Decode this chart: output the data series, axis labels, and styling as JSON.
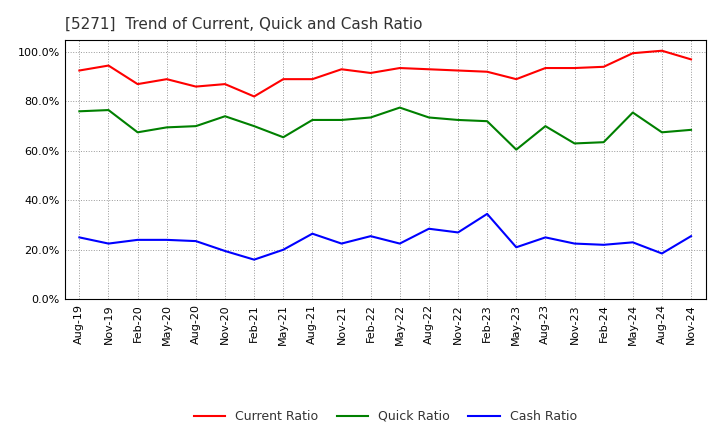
{
  "title": "[5271]  Trend of Current, Quick and Cash Ratio",
  "x_labels": [
    "Aug-19",
    "Nov-19",
    "Feb-20",
    "May-20",
    "Aug-20",
    "Nov-20",
    "Feb-21",
    "May-21",
    "Aug-21",
    "Nov-21",
    "Feb-22",
    "May-22",
    "Aug-22",
    "Nov-22",
    "Feb-23",
    "May-23",
    "Aug-23",
    "Nov-23",
    "Feb-24",
    "May-24",
    "Aug-24",
    "Nov-24"
  ],
  "current_ratio": [
    92.5,
    94.5,
    87.0,
    89.0,
    86.0,
    87.0,
    82.0,
    89.0,
    89.0,
    93.0,
    91.5,
    93.5,
    93.0,
    92.5,
    92.0,
    89.0,
    93.5,
    93.5,
    94.0,
    99.5,
    100.5,
    97.0
  ],
  "quick_ratio": [
    76.0,
    76.5,
    67.5,
    69.5,
    70.0,
    74.0,
    70.0,
    65.5,
    72.5,
    72.5,
    73.5,
    77.5,
    73.5,
    72.5,
    72.0,
    60.5,
    70.0,
    63.0,
    63.5,
    75.5,
    67.5,
    68.5
  ],
  "cash_ratio": [
    25.0,
    22.5,
    24.0,
    24.0,
    23.5,
    19.5,
    16.0,
    20.0,
    26.5,
    22.5,
    25.5,
    22.5,
    28.5,
    27.0,
    34.5,
    21.0,
    25.0,
    22.5,
    22.0,
    23.0,
    18.5,
    25.5
  ],
  "current_color": "#FF0000",
  "quick_color": "#008000",
  "cash_color": "#0000FF",
  "ylim": [
    0,
    105
  ],
  "yticks": [
    0,
    20,
    40,
    60,
    80,
    100
  ],
  "background_color": "#FFFFFF",
  "plot_bg_color": "#FFFFFF",
  "grid_color": "#999999",
  "line_width": 1.5,
  "title_fontsize": 11,
  "tick_fontsize": 8,
  "legend_fontsize": 9
}
